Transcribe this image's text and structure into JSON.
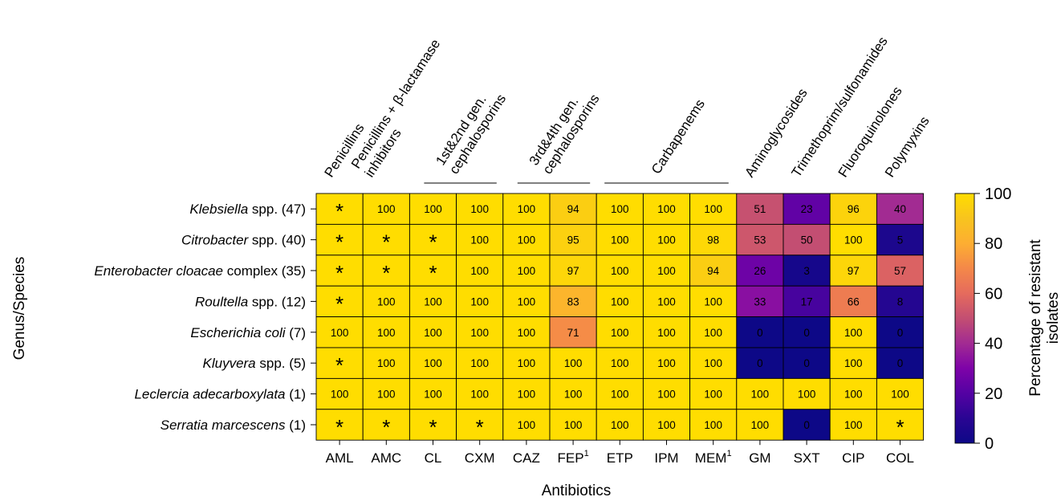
{
  "chart_data": {
    "type": "heatmap",
    "xlabel": "Antibiotics",
    "ylabel": "Genus/Species",
    "columns": [
      {
        "label": "AML",
        "sup": ""
      },
      {
        "label": "AMC",
        "sup": ""
      },
      {
        "label": "CL",
        "sup": ""
      },
      {
        "label": "CXM",
        "sup": ""
      },
      {
        "label": "CAZ",
        "sup": ""
      },
      {
        "label": "FEP",
        "sup": "1"
      },
      {
        "label": "ETP",
        "sup": ""
      },
      {
        "label": "IPM",
        "sup": ""
      },
      {
        "label": "MEM",
        "sup": "1"
      },
      {
        "label": "GM",
        "sup": ""
      },
      {
        "label": "SXT",
        "sup": ""
      },
      {
        "label": "CIP",
        "sup": ""
      },
      {
        "label": "COL",
        "sup": ""
      }
    ],
    "column_groups": [
      {
        "lines": [
          "Penicillins"
        ],
        "start": 0,
        "end": 0,
        "bracket": false
      },
      {
        "lines": [
          "Penicillins + β-lactamase",
          "inhibitors"
        ],
        "start": 1,
        "end": 1,
        "bracket": false
      },
      {
        "lines": [
          "1st&2nd gen.",
          "cephalosporins"
        ],
        "start": 2,
        "end": 3,
        "bracket": true
      },
      {
        "lines": [
          "3rd&4th gen.",
          "cephalosporins"
        ],
        "start": 4,
        "end": 5,
        "bracket": true
      },
      {
        "lines": [
          "Carbapenems"
        ],
        "start": 6,
        "end": 8,
        "bracket": true
      },
      {
        "lines": [
          "Aminoglycosides"
        ],
        "start": 9,
        "end": 9,
        "bracket": false
      },
      {
        "lines": [
          "Trimethoprim/sulfonamides"
        ],
        "start": 10,
        "end": 10,
        "bracket": false
      },
      {
        "lines": [
          "Fluoroquinolones"
        ],
        "start": 11,
        "end": 11,
        "bracket": false
      },
      {
        "lines": [
          "Polymyxins"
        ],
        "start": 12,
        "end": 12,
        "bracket": false
      }
    ],
    "rows": [
      {
        "italic": "Klebsiella",
        "plain": " spp. (47)"
      },
      {
        "italic": "Citrobacter",
        "plain": " spp. (40)"
      },
      {
        "italic": "Enterobacter cloacae",
        "plain": " complex (35)"
      },
      {
        "italic": "Roultella",
        "plain": " spp. (12)"
      },
      {
        "italic": "Escherichia coli",
        "plain": " (7)"
      },
      {
        "italic": "Kluyvera",
        "plain": " spp. (5)"
      },
      {
        "italic": "Leclercia adecarboxylata",
        "plain": " (1)"
      },
      {
        "italic": "Serratia marcescens",
        "plain": " (1)"
      }
    ],
    "values": [
      [
        null,
        100,
        100,
        100,
        100,
        94,
        100,
        100,
        100,
        51,
        23,
        96,
        40
      ],
      [
        null,
        null,
        null,
        100,
        100,
        95,
        100,
        100,
        98,
        53,
        50,
        100,
        5
      ],
      [
        null,
        null,
        null,
        100,
        100,
        97,
        100,
        100,
        94,
        26,
        3,
        97,
        57
      ],
      [
        null,
        100,
        100,
        100,
        100,
        83,
        100,
        100,
        100,
        33,
        17,
        66,
        8
      ],
      [
        100,
        100,
        100,
        100,
        100,
        71,
        100,
        100,
        100,
        0,
        0,
        100,
        0
      ],
      [
        null,
        100,
        100,
        100,
        100,
        100,
        100,
        100,
        100,
        0,
        0,
        100,
        0
      ],
      [
        100,
        100,
        100,
        100,
        100,
        100,
        100,
        100,
        100,
        100,
        100,
        100,
        100
      ],
      [
        null,
        null,
        null,
        null,
        100,
        100,
        100,
        100,
        100,
        100,
        0,
        100,
        null
      ]
    ],
    "missing_marker": "*",
    "colorbar": {
      "title_lines": [
        "Percentage of resistant",
        "isolates"
      ],
      "min": 0,
      "max": 100,
      "ticks": [
        0,
        20,
        40,
        60,
        80,
        100
      ],
      "colormap": "plasma",
      "stops": [
        {
          "v": 0,
          "color": "#0d0887"
        },
        {
          "v": 10,
          "color": "#2a0593"
        },
        {
          "v": 20,
          "color": "#5402a3"
        },
        {
          "v": 30,
          "color": "#7e03a8"
        },
        {
          "v": 40,
          "color": "#a22b92"
        },
        {
          "v": 50,
          "color": "#c34e72"
        },
        {
          "v": 60,
          "color": "#e56b5d"
        },
        {
          "v": 70,
          "color": "#f48849"
        },
        {
          "v": 80,
          "color": "#fdae32"
        },
        {
          "v": 90,
          "color": "#f8c41e"
        },
        {
          "v": 100,
          "color": "#ffdd00"
        }
      ],
      "missing_color": "#ffdd00"
    }
  }
}
